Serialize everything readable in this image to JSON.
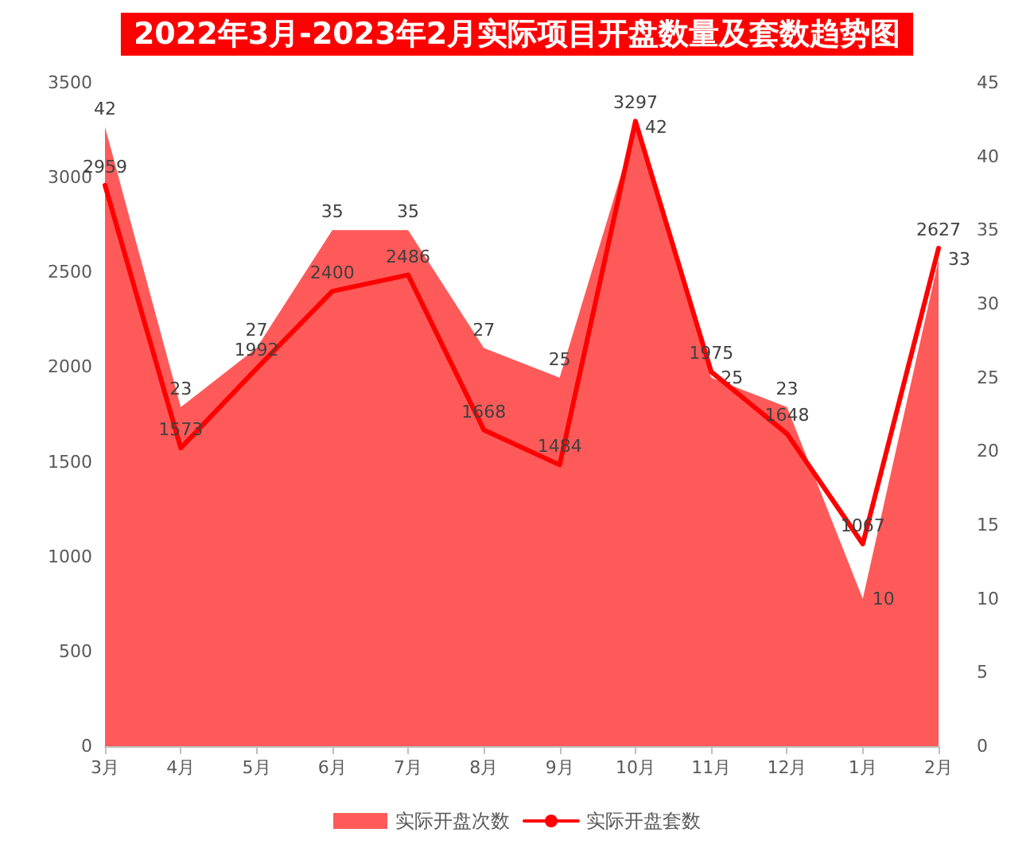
{
  "chart_data": {
    "type": "line",
    "title": "2022年3月-2023年2月实际项目开盘数量及套数趋势图",
    "categories": [
      "3月",
      "4月",
      "5月",
      "6月",
      "7月",
      "8月",
      "9月",
      "10月",
      "11月",
      "12月",
      "1月",
      "2月"
    ],
    "series": [
      {
        "name": "实际开盘次数",
        "type": "area",
        "axis": "y2",
        "color": "#ff5a5a",
        "values": [
          42,
          23,
          27,
          35,
          35,
          27,
          25,
          42,
          25,
          23,
          10,
          33
        ]
      },
      {
        "name": "实际开盘套数",
        "type": "line",
        "color": "#ff0000",
        "values": [
          2959,
          1573,
          1992,
          2400,
          2486,
          1668,
          1484,
          3297,
          1975,
          1648,
          1067,
          2627
        ]
      }
    ],
    "ylim": [
      0,
      3500
    ],
    "yticks": [
      0,
      500,
      1000,
      1500,
      2000,
      2500,
      3000,
      3500
    ],
    "y2lim": [
      0,
      45
    ],
    "y2ticks": [
      0,
      5,
      10,
      15,
      20,
      25,
      30,
      35,
      40,
      45
    ],
    "data_labels": true,
    "grid": false,
    "legend": "bottom",
    "marker": "none",
    "line_style": "solid"
  }
}
